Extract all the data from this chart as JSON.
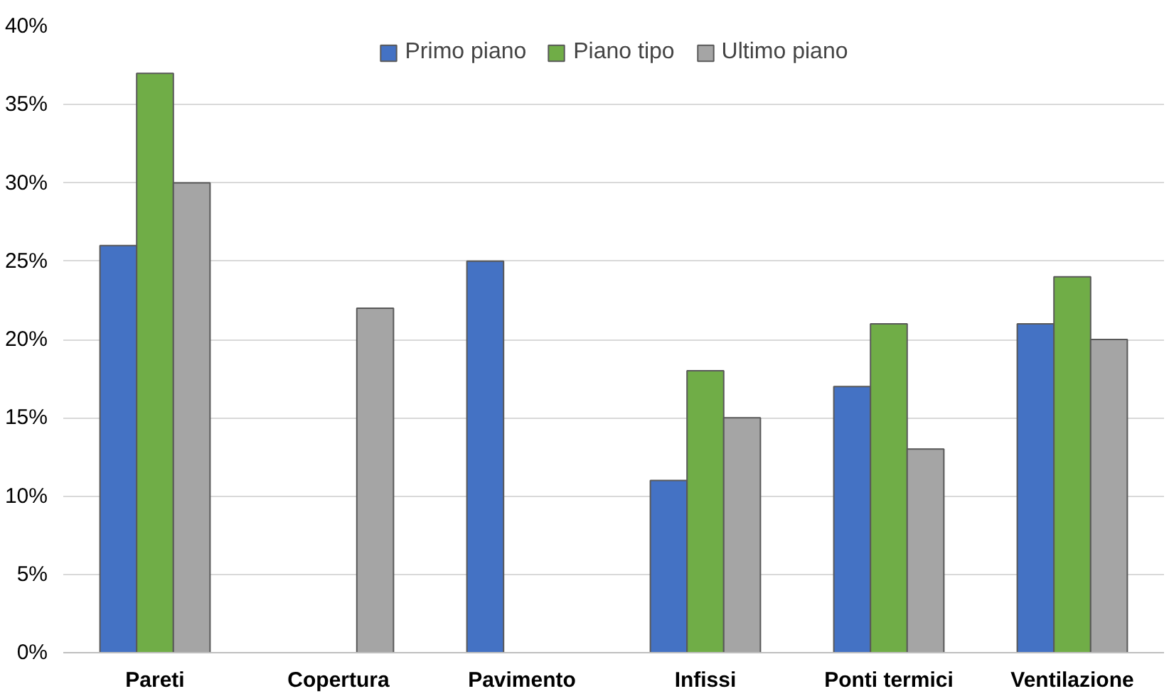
{
  "chart_data": {
    "type": "bar",
    "categories": [
      "Pareti",
      "Copertura",
      "Pavimento",
      "Infissi",
      "Ponti termici",
      "Ventilazione"
    ],
    "series": [
      {
        "name": "Primo piano",
        "color": "#4472c4",
        "values": [
          26,
          null,
          25,
          11,
          17,
          21
        ]
      },
      {
        "name": "Piano tipo",
        "color": "#70ad47",
        "values": [
          37,
          null,
          null,
          18,
          21,
          24
        ]
      },
      {
        "name": "Ultimo piano",
        "color": "#a5a5a5",
        "values": [
          30,
          22,
          null,
          15,
          13,
          20
        ]
      }
    ],
    "ylim": [
      0,
      40
    ],
    "yticks": [
      {
        "value": 0,
        "label": "0%"
      },
      {
        "value": 5,
        "label": "5%"
      },
      {
        "value": 10,
        "label": "10%"
      },
      {
        "value": 15,
        "label": "15%"
      },
      {
        "value": 20,
        "label": "20%"
      },
      {
        "value": 25,
        "label": "25%"
      },
      {
        "value": 30,
        "label": "30%"
      },
      {
        "value": 35,
        "label": "35%"
      },
      {
        "value": 40,
        "label": "40%"
      }
    ],
    "grid": "y",
    "legend": "top"
  }
}
